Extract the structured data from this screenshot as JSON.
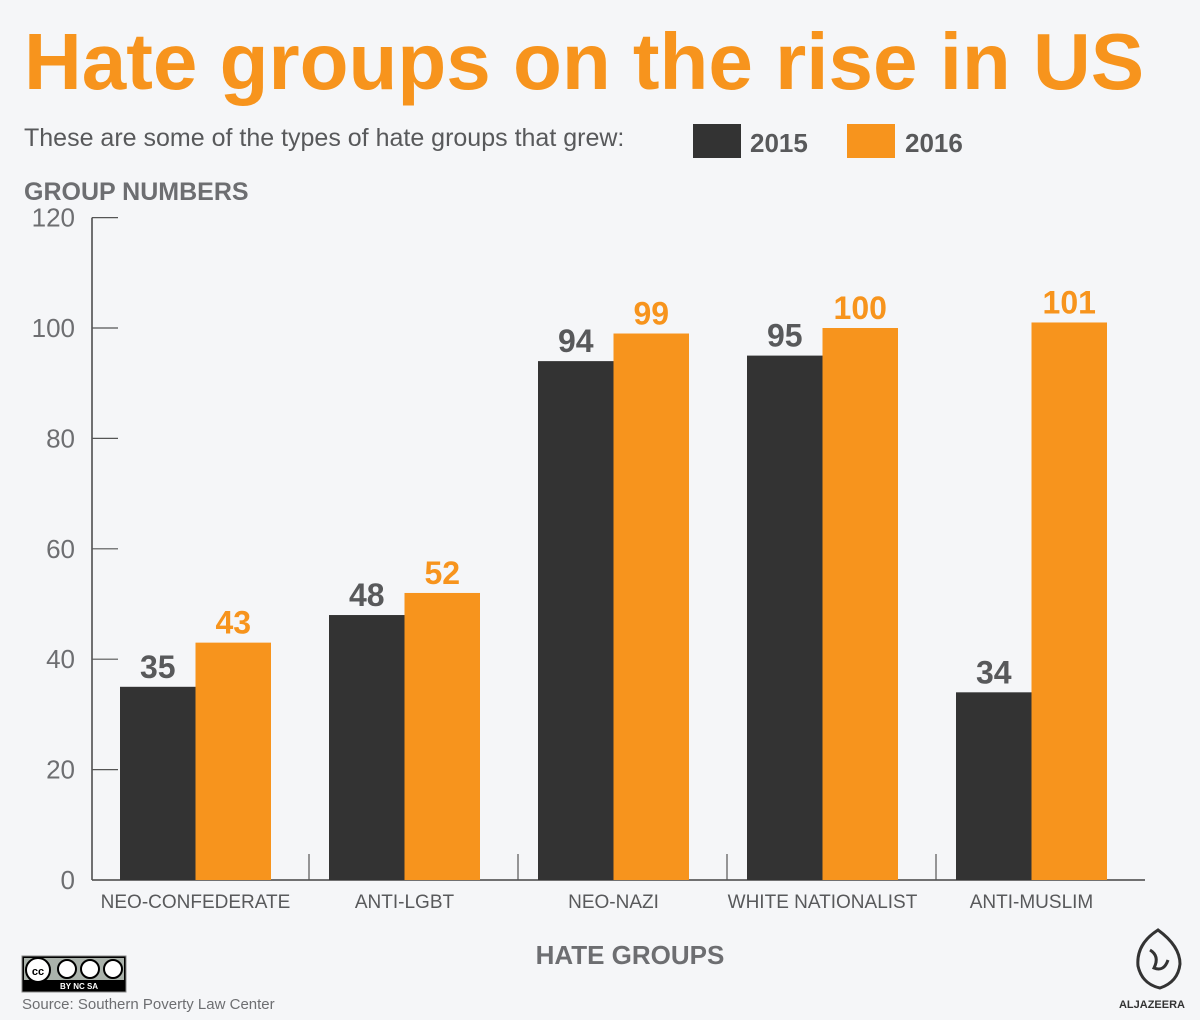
{
  "title": "Hate groups on the rise in US",
  "subtitle": "These are some of the types of hate groups that grew:",
  "source": "Source: Southern Poverty Law Center",
  "license": "BY NC SA",
  "logo_text": "ALJAZEERA",
  "colors": {
    "2015": "#333333",
    "2016": "#f7941d"
  },
  "chart_data": {
    "type": "bar",
    "title": "Hate groups on the rise in US",
    "ylabel": "GROUP NUMBERS",
    "xlabel": "HATE GROUPS",
    "ylim": [
      0,
      120
    ],
    "yticks": [
      0,
      20,
      40,
      60,
      80,
      100,
      120
    ],
    "grid": false,
    "legend": "top",
    "categories": [
      "NEO-CONFEDERATE",
      "ANTI-LGBT",
      "NEO-NAZI",
      "WHITE NATIONALIST",
      "ANTI-MUSLIM"
    ],
    "series": [
      {
        "name": "2015",
        "values": [
          35,
          48,
          94,
          95,
          34
        ]
      },
      {
        "name": "2016",
        "values": [
          43,
          52,
          99,
          100,
          101
        ]
      }
    ]
  }
}
